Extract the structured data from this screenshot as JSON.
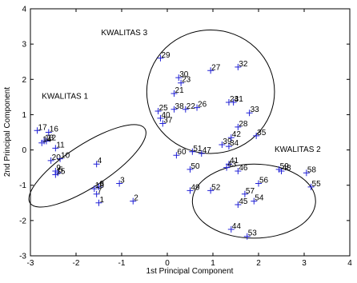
{
  "chart_data": {
    "type": "scatter",
    "xlabel": "1st Principal Component",
    "ylabel": "2nd Principal Component",
    "xlim": [
      -3,
      4
    ],
    "ylim": [
      -3,
      4
    ],
    "xticks": [
      -3,
      -2,
      -1,
      0,
      1,
      2,
      3,
      4
    ],
    "yticks": [
      -3,
      -2,
      -1,
      0,
      1,
      2,
      3,
      4
    ],
    "grid": false,
    "marker": "+",
    "marker_color": "#1f1fd6",
    "points": [
      {
        "label": "1",
        "x": -1.5,
        "y": -1.5
      },
      {
        "label": "2",
        "x": -0.75,
        "y": -1.45
      },
      {
        "label": "3",
        "x": -1.05,
        "y": -0.95
      },
      {
        "label": "4",
        "x": -1.55,
        "y": -0.4
      },
      {
        "label": "5",
        "x": -2.4,
        "y": -0.65
      },
      {
        "label": "7",
        "x": -1.55,
        "y": -1.25
      },
      {
        "label": "8",
        "x": -1.5,
        "y": -1.05
      },
      {
        "label": "9",
        "x": -2.45,
        "y": -0.6
      },
      {
        "label": "10",
        "x": -2.35,
        "y": -0.25
      },
      {
        "label": "11",
        "x": -2.45,
        "y": 0.05
      },
      {
        "label": "12",
        "x": -2.65,
        "y": 0.25
      },
      {
        "label": "13",
        "x": -2.7,
        "y": 0.25
      },
      {
        "label": "14",
        "x": -2.75,
        "y": 0.2
      },
      {
        "label": "15",
        "x": -2.45,
        "y": -0.7
      },
      {
        "label": "16",
        "x": -2.6,
        "y": 0.5
      },
      {
        "label": "17",
        "x": -2.85,
        "y": 0.55
      },
      {
        "label": "18",
        "x": -1.6,
        "y": -1.1
      },
      {
        "label": "20",
        "x": -2.55,
        "y": -0.3
      },
      {
        "label": "21",
        "x": 0.15,
        "y": 1.6
      },
      {
        "label": "22",
        "x": 0.4,
        "y": 1.15
      },
      {
        "label": "23",
        "x": 0.3,
        "y": 1.9
      },
      {
        "label": "24",
        "x": 1.35,
        "y": 1.35
      },
      {
        "label": "25",
        "x": -0.2,
        "y": 1.1
      },
      {
        "label": "26",
        "x": 0.65,
        "y": 1.2
      },
      {
        "label": "27",
        "x": 0.95,
        "y": 2.25
      },
      {
        "label": "28",
        "x": 1.55,
        "y": 0.65
      },
      {
        "label": "29",
        "x": -0.15,
        "y": 2.6
      },
      {
        "label": "30",
        "x": 0.25,
        "y": 2.05
      },
      {
        "label": "31",
        "x": 1.45,
        "y": 1.35
      },
      {
        "label": "32",
        "x": 1.55,
        "y": 2.35
      },
      {
        "label": "33",
        "x": 1.8,
        "y": 1.05
      },
      {
        "label": "34",
        "x": 1.35,
        "y": 0.1
      },
      {
        "label": "35",
        "x": 1.95,
        "y": 0.4
      },
      {
        "label": "37",
        "x": -0.1,
        "y": 0.75
      },
      {
        "label": "38",
        "x": 0.15,
        "y": 1.15
      },
      {
        "label": "39",
        "x": 1.2,
        "y": 0.15
      },
      {
        "label": "40",
        "x": -0.15,
        "y": 0.9
      },
      {
        "label": "41",
        "x": 1.35,
        "y": -0.4
      },
      {
        "label": "42",
        "x": 1.4,
        "y": 0.35
      },
      {
        "label": "43",
        "x": 1.3,
        "y": -0.5
      },
      {
        "label": "44",
        "x": 1.4,
        "y": -2.25
      },
      {
        "label": "45",
        "x": 1.55,
        "y": -1.55
      },
      {
        "label": "46",
        "x": 1.55,
        "y": -0.6
      },
      {
        "label": "47",
        "x": 0.75,
        "y": -0.1
      },
      {
        "label": "48",
        "x": 2.5,
        "y": -0.6
      },
      {
        "label": "49",
        "x": 0.5,
        "y": -1.15
      },
      {
        "label": "50",
        "x": 0.5,
        "y": -0.55
      },
      {
        "label": "51",
        "x": 0.55,
        "y": -0.05
      },
      {
        "label": "52",
        "x": 0.95,
        "y": -1.15
      },
      {
        "label": "53",
        "x": 1.75,
        "y": -2.45
      },
      {
        "label": "54",
        "x": 1.9,
        "y": -1.45
      },
      {
        "label": "55",
        "x": 3.15,
        "y": -1.05
      },
      {
        "label": "56",
        "x": 2.0,
        "y": -0.95
      },
      {
        "label": "57",
        "x": 1.7,
        "y": -1.25
      },
      {
        "label": "58",
        "x": 3.05,
        "y": -0.65
      },
      {
        "label": "59",
        "x": 2.45,
        "y": -0.55
      },
      {
        "label": "60",
        "x": 0.2,
        "y": -0.15
      }
    ],
    "annotations": [
      {
        "text": "KWALITAS 1",
        "x": -2.75,
        "y": 1.45
      },
      {
        "text": "KWALITAS 3",
        "x": -1.45,
        "y": 3.25
      },
      {
        "text": "KWALITAS 2",
        "x": 2.35,
        "y": -0.05
      }
    ],
    "ellipses": [
      {
        "cx": -1.75,
        "cy": -0.45,
        "rx": 1.5,
        "ry": 0.6,
        "angle_deg": -33
      },
      {
        "cx": 0.95,
        "cy": 1.65,
        "rx": 1.4,
        "ry": 1.75,
        "angle_deg": 0
      },
      {
        "cx": 1.9,
        "cy": -1.45,
        "rx": 1.35,
        "ry": 1.05,
        "angle_deg": 0
      }
    ]
  }
}
